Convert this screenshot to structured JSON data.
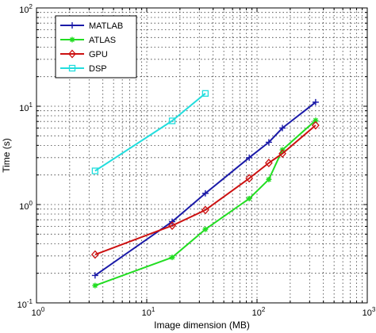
{
  "chart_data": {
    "type": "line",
    "xlabel": "Image dimension (MB)",
    "ylabel": "Time (s)",
    "xscale": "log",
    "yscale": "log",
    "xlim": [
      1,
      1000
    ],
    "ylim": [
      0.1,
      100
    ],
    "grid": true,
    "legend_position": "top-left",
    "x_ticks": [
      {
        "value": 1,
        "base": "10",
        "exp": "0"
      },
      {
        "value": 10,
        "base": "10",
        "exp": "1"
      },
      {
        "value": 100,
        "base": "10",
        "exp": "2"
      },
      {
        "value": 1000,
        "base": "10",
        "exp": "3"
      }
    ],
    "y_ticks": [
      {
        "value": 0.1,
        "base": "10",
        "exp": "-1"
      },
      {
        "value": 1,
        "base": "10",
        "exp": "0"
      },
      {
        "value": 10,
        "base": "10",
        "exp": "1"
      },
      {
        "value": 100,
        "base": "10",
        "exp": "2"
      }
    ],
    "series": [
      {
        "name": "MATLAB",
        "color": "#1a1aa8",
        "marker": "plus",
        "x": [
          3.4,
          17,
          34,
          85,
          128,
          170,
          340
        ],
        "y": [
          0.19,
          0.67,
          1.3,
          3.0,
          4.3,
          6.0,
          11.0
        ]
      },
      {
        "name": "ATLAS",
        "color": "#22dd22",
        "marker": "star",
        "x": [
          3.4,
          17,
          34,
          85,
          128,
          170,
          340
        ],
        "y": [
          0.15,
          0.29,
          0.56,
          1.15,
          1.8,
          3.6,
          7.2
        ]
      },
      {
        "name": "GPU",
        "color": "#cc1111",
        "marker": "diamond",
        "x": [
          3.4,
          17,
          34,
          85,
          128,
          170,
          340
        ],
        "y": [
          0.31,
          0.61,
          0.88,
          1.85,
          2.65,
          3.3,
          6.4
        ]
      },
      {
        "name": "DSP",
        "color": "#22dddd",
        "marker": "square",
        "x": [
          3.4,
          17,
          34
        ],
        "y": [
          2.2,
          7.1,
          13.5
        ]
      }
    ]
  }
}
